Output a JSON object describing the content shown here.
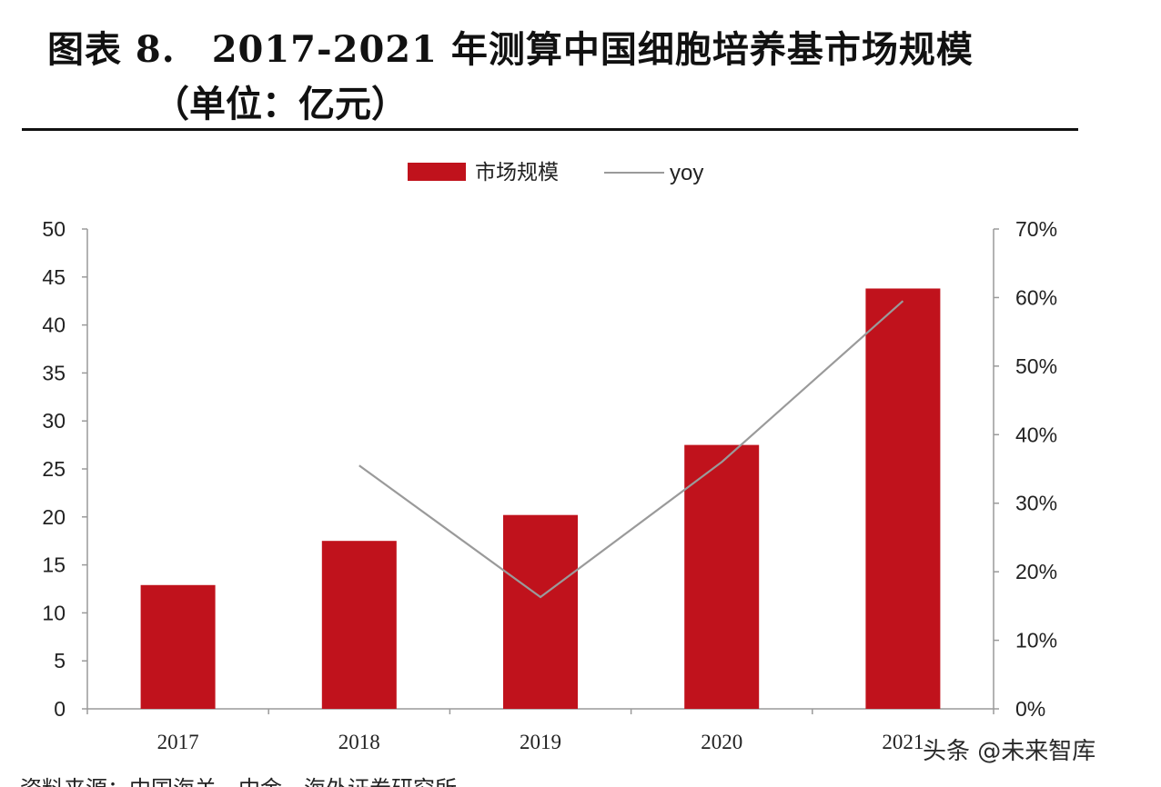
{
  "title": {
    "figure_number": "图表 8.",
    "line1": "2017-2021 年测算中国细胞培养基市场规模",
    "line2": "（单位：亿元）"
  },
  "chart_data": {
    "type": "bar",
    "categories": [
      "2017",
      "2018",
      "2019",
      "2020",
      "2021"
    ],
    "series": [
      {
        "name": "市场规模",
        "type": "bar",
        "axis": "left",
        "color": "#C0121C",
        "values": [
          12.9,
          17.5,
          20.2,
          27.5,
          43.8
        ]
      },
      {
        "name": "yoy",
        "type": "line",
        "axis": "right",
        "color": "#9a9a9a",
        "values": [
          null,
          0.355,
          0.163,
          0.36,
          0.595
        ]
      }
    ],
    "left_axis": {
      "min": 0,
      "max": 50,
      "ticks": [
        "0",
        "5",
        "10",
        "15",
        "20",
        "25",
        "30",
        "35",
        "40",
        "45",
        "50"
      ]
    },
    "right_axis": {
      "min": 0,
      "max": 0.7,
      "ticks": [
        "0%",
        "10%",
        "20%",
        "30%",
        "40%",
        "50%",
        "60%",
        "70%"
      ]
    },
    "legend_position": "top-center",
    "grid": false
  },
  "watermark": "头条 @未来智库",
  "source_partial": "资料来源：中国海关，中金，海外证券研究所"
}
